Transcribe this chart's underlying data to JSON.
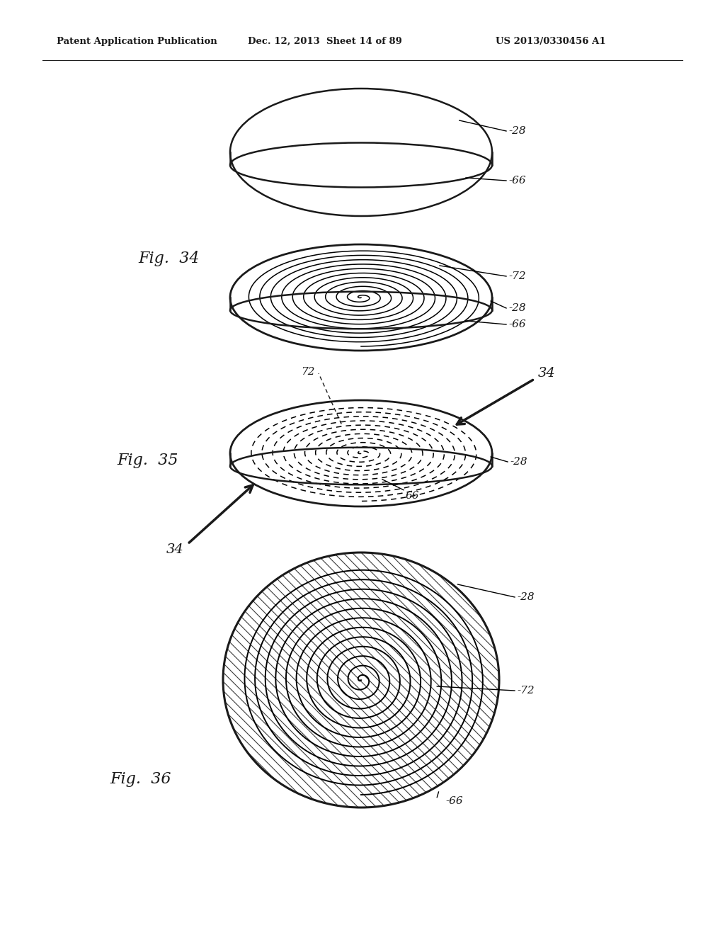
{
  "bg_color": "#ffffff",
  "header_left": "Patent Application Publication",
  "header_mid": "Dec. 12, 2013  Sheet 14 of 89",
  "header_right": "US 2013/0330456 A1",
  "fig34_label": "Fig.  34",
  "fig35_label": "Fig.  35",
  "fig36_label": "Fig.  36",
  "line_color": "#1a1a1a"
}
